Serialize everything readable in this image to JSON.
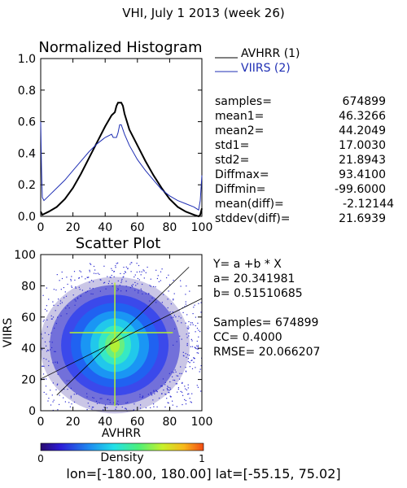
{
  "page_title": "VHI,  July 1 2013 (week 26)",
  "region_text": "lon=[-180.00, 180.00] lat=[-55.15, 75.02]",
  "colors": {
    "avhrr": "#000000",
    "viirs": "#1f2fb4",
    "fit_line": "#000000"
  },
  "chart_data": [
    {
      "type": "line",
      "title": "Normalized Histogram",
      "xlabel": "",
      "ylabel": "",
      "xlim": [
        0,
        100
      ],
      "ylim": [
        0,
        1.0
      ],
      "x_ticks": [
        0,
        20,
        40,
        60,
        80,
        100
      ],
      "y_ticks": [
        "0.0",
        "0.2",
        "0.4",
        "0.6",
        "0.8",
        "1.0"
      ],
      "legend_position": "right",
      "series": [
        {
          "name": "AVHRR (1)",
          "color": "#000000",
          "x": [
            0,
            1,
            5,
            10,
            15,
            20,
            25,
            30,
            35,
            40,
            44,
            46,
            47,
            48,
            49,
            50,
            51,
            52,
            55,
            60,
            65,
            70,
            75,
            80,
            85,
            90,
            95,
            98,
            99,
            100
          ],
          "y": [
            0.03,
            0.01,
            0.03,
            0.06,
            0.11,
            0.18,
            0.27,
            0.37,
            0.47,
            0.57,
            0.64,
            0.66,
            0.7,
            0.72,
            0.72,
            0.72,
            0.7,
            0.65,
            0.55,
            0.45,
            0.35,
            0.26,
            0.18,
            0.11,
            0.06,
            0.03,
            0.01,
            0.0,
            0.01,
            0.05
          ]
        },
        {
          "name": "VIIRS (2)",
          "color": "#1f2fb4",
          "x": [
            0,
            0.5,
            1,
            2,
            5,
            10,
            15,
            20,
            25,
            30,
            35,
            40,
            44,
            45,
            47,
            48,
            49,
            50,
            51,
            52,
            55,
            60,
            65,
            70,
            75,
            80,
            85,
            90,
            95,
            98,
            99,
            100
          ],
          "y": [
            0.6,
            0.3,
            0.12,
            0.1,
            0.13,
            0.18,
            0.23,
            0.29,
            0.35,
            0.41,
            0.46,
            0.5,
            0.52,
            0.5,
            0.5,
            0.53,
            0.58,
            0.58,
            0.55,
            0.52,
            0.45,
            0.36,
            0.29,
            0.23,
            0.17,
            0.13,
            0.1,
            0.08,
            0.06,
            0.04,
            0.1,
            0.26
          ]
        }
      ]
    },
    {
      "type": "heatmap",
      "title": "Scatter Plot",
      "xlabel": "AVHRR",
      "ylabel": "VIIRS",
      "xlim": [
        0,
        100
      ],
      "ylim": [
        0,
        100
      ],
      "x_ticks": [
        0,
        20,
        40,
        60,
        80,
        100
      ],
      "y_ticks": [
        0,
        20,
        40,
        60,
        80,
        100
      ],
      "density_center": [
        46,
        42
      ],
      "fit_line": {
        "intercept": 20.341981,
        "slope": 0.51510685
      },
      "colorbar": {
        "label": "Density",
        "min_label": "0",
        "max_label": "1"
      }
    }
  ],
  "stats": [
    {
      "label": "samples=",
      "value": "674899"
    },
    {
      "label": "mean1=",
      "value": "46.3266"
    },
    {
      "label": "mean2=",
      "value": "44.2049"
    },
    {
      "label": "std1=",
      "value": "17.0030"
    },
    {
      "label": "std2=",
      "value": "21.8943"
    },
    {
      "label": "Diffmax=",
      "value": "93.4100"
    },
    {
      "label": "Diffmin=",
      "value": "-99.6000"
    },
    {
      "label": "mean(diff)=",
      "value": "-2.12144"
    },
    {
      "label": "stddev(diff)=",
      "value": "21.6939"
    }
  ],
  "regression": {
    "equation": "Y= a +b * X",
    "a_text": "a= 20.341981",
    "b_text": "b= 0.51510685",
    "samples_text": "Samples= 674899",
    "cc_text": "CC=  0.4000",
    "rmse_text": "RMSE= 20.066207"
  }
}
